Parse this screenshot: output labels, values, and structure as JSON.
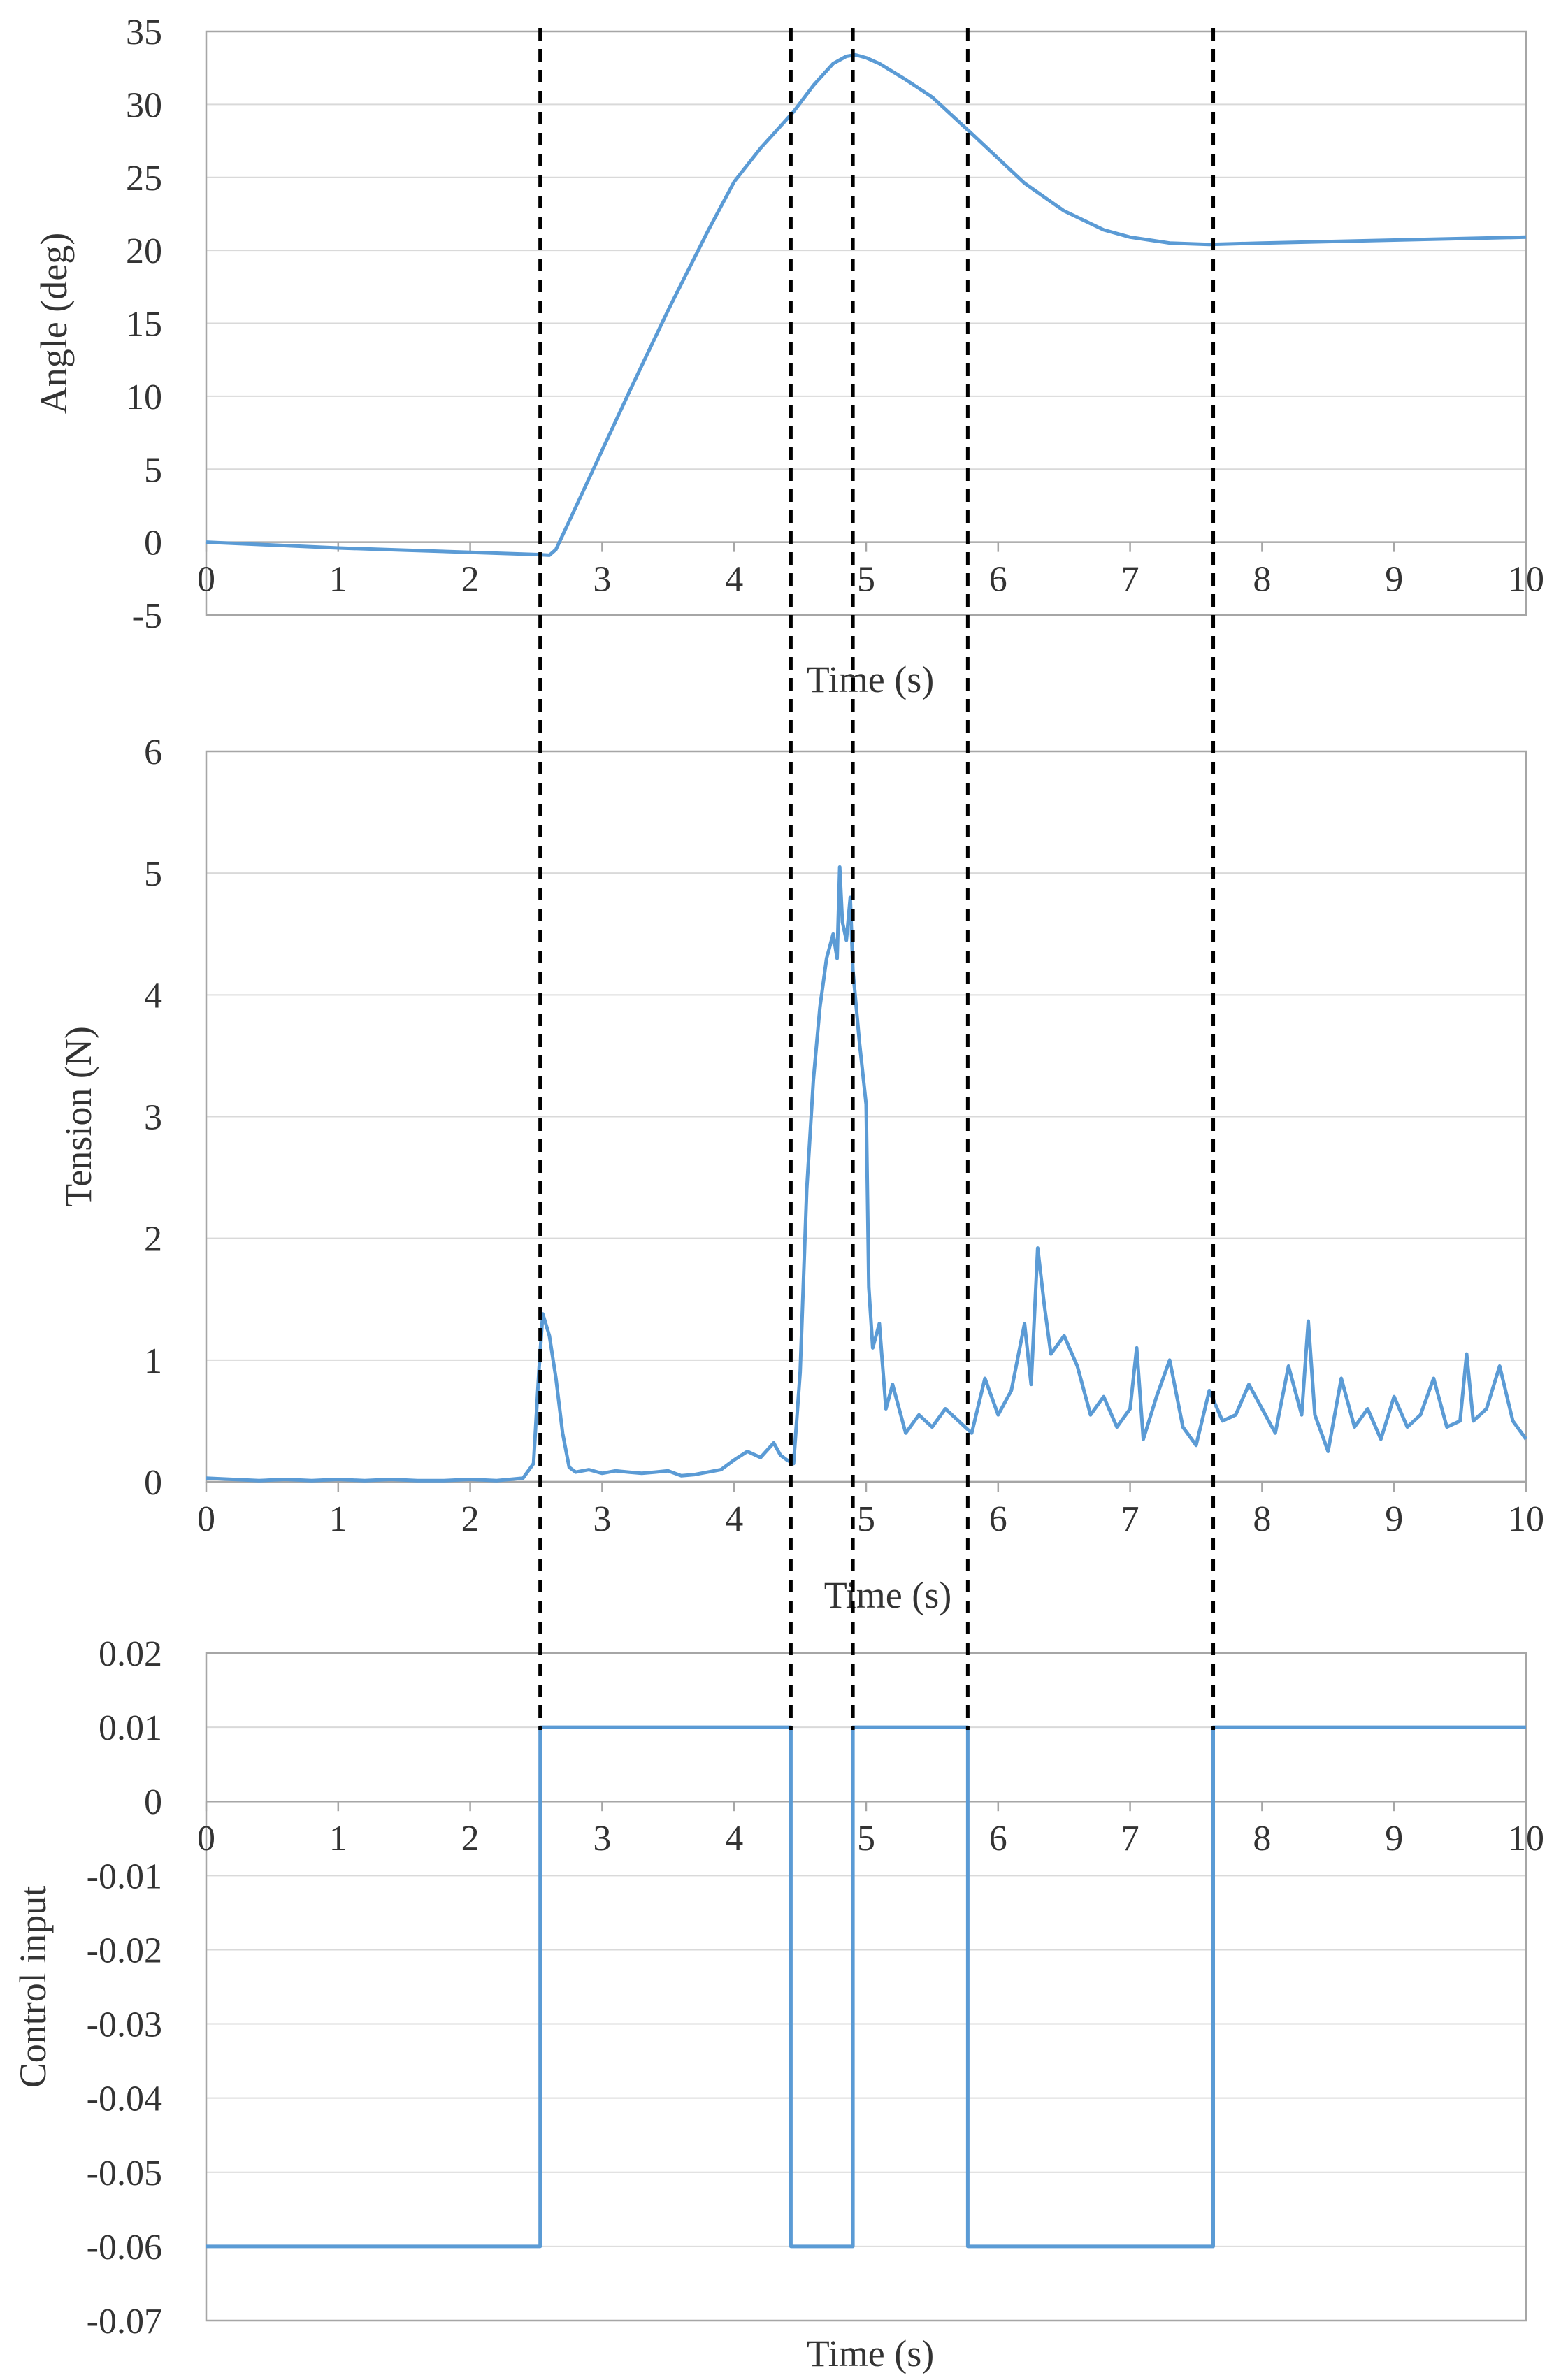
{
  "colors": {
    "series": "#5b9bd5",
    "grid": "#d9d9d9",
    "frame": "#a6a6a6",
    "markers": "#000000",
    "text": "#333333"
  },
  "chart_data": [
    {
      "type": "line",
      "xlabel": "Time (s)",
      "ylabel": "Angle (deg)",
      "xlim": [
        0,
        10
      ],
      "ylim": [
        -5,
        35
      ],
      "xticks": [
        "0",
        "1",
        "2",
        "3",
        "4",
        "5",
        "6",
        "7",
        "8",
        "9",
        "10"
      ],
      "yticks": [
        "-5",
        "0",
        "5",
        "10",
        "15",
        "20",
        "25",
        "30",
        "35"
      ],
      "grid": true,
      "x_axis_at_zero": true,
      "series": [
        {
          "x": [
            0,
            0.5,
            1,
            1.5,
            2,
            2.5,
            2.6,
            2.65,
            2.8,
            3.0,
            3.2,
            3.5,
            3.8,
            4.0,
            4.2,
            4.45,
            4.6,
            4.75,
            4.85,
            4.92,
            5.0,
            5.1,
            5.3,
            5.5,
            5.8,
            6.0,
            6.2,
            6.5,
            6.8,
            7.0,
            7.3,
            7.6,
            8.0,
            8.5,
            9.0,
            9.5,
            10.0
          ],
          "y": [
            0,
            -0.2,
            -0.4,
            -0.55,
            -0.7,
            -0.85,
            -0.9,
            -0.5,
            2.4,
            6.3,
            10.2,
            15.9,
            21.3,
            24.7,
            27.0,
            29.5,
            31.3,
            32.8,
            33.3,
            33.4,
            33.2,
            32.8,
            31.7,
            30.5,
            28.0,
            26.3,
            24.6,
            22.7,
            21.4,
            20.9,
            20.5,
            20.4,
            20.5,
            20.6,
            20.7,
            20.8,
            20.9
          ]
        }
      ]
    },
    {
      "type": "line",
      "xlabel": "Time (s)",
      "ylabel": "Tension (N)",
      "xlim": [
        0,
        10
      ],
      "ylim": [
        0,
        6
      ],
      "xticks": [
        "0",
        "1",
        "2",
        "3",
        "4",
        "5",
        "6",
        "7",
        "8",
        "9",
        "10"
      ],
      "yticks": [
        "0",
        "1",
        "2",
        "3",
        "4",
        "5",
        "6"
      ],
      "grid": true,
      "series": [
        {
          "x": [
            0,
            0.2,
            0.4,
            0.6,
            0.8,
            1.0,
            1.2,
            1.4,
            1.6,
            1.8,
            2.0,
            2.2,
            2.4,
            2.48,
            2.52,
            2.55,
            2.6,
            2.65,
            2.7,
            2.75,
            2.8,
            2.9,
            3.0,
            3.1,
            3.2,
            3.3,
            3.4,
            3.5,
            3.6,
            3.7,
            3.8,
            3.9,
            4.0,
            4.1,
            4.2,
            4.3,
            4.35,
            4.4,
            4.45,
            4.5,
            4.55,
            4.6,
            4.65,
            4.7,
            4.75,
            4.78,
            4.8,
            4.82,
            4.85,
            4.88,
            4.9,
            4.95,
            5.0,
            5.02,
            5.05,
            5.1,
            5.15,
            5.2,
            5.3,
            5.4,
            5.5,
            5.6,
            5.7,
            5.8,
            5.9,
            6.0,
            6.1,
            6.2,
            6.25,
            6.3,
            6.35,
            6.4,
            6.5,
            6.6,
            6.7,
            6.8,
            6.9,
            7.0,
            7.05,
            7.1,
            7.2,
            7.3,
            7.4,
            7.5,
            7.6,
            7.7,
            7.8,
            7.9,
            8.0,
            8.1,
            8.2,
            8.3,
            8.35,
            8.4,
            8.5,
            8.6,
            8.7,
            8.8,
            8.9,
            9.0,
            9.1,
            9.2,
            9.3,
            9.4,
            9.5,
            9.55,
            9.6,
            9.7,
            9.8,
            9.9,
            10.0
          ],
          "y": [
            0.03,
            0.02,
            0.01,
            0.02,
            0.01,
            0.02,
            0.01,
            0.02,
            0.01,
            0.01,
            0.02,
            0.01,
            0.03,
            0.15,
            0.9,
            1.38,
            1.2,
            0.85,
            0.4,
            0.12,
            0.08,
            0.1,
            0.07,
            0.09,
            0.08,
            0.07,
            0.08,
            0.09,
            0.05,
            0.06,
            0.08,
            0.1,
            0.18,
            0.25,
            0.2,
            0.32,
            0.22,
            0.18,
            0.15,
            0.9,
            2.4,
            3.3,
            3.9,
            4.3,
            4.5,
            4.3,
            5.05,
            4.6,
            4.45,
            4.8,
            4.2,
            3.6,
            3.1,
            1.6,
            1.1,
            1.3,
            0.6,
            0.8,
            0.4,
            0.55,
            0.45,
            0.6,
            0.5,
            0.4,
            0.85,
            0.55,
            0.75,
            1.3,
            0.8,
            1.92,
            1.45,
            1.05,
            1.2,
            0.95,
            0.55,
            0.7,
            0.45,
            0.6,
            1.1,
            0.35,
            0.7,
            1.0,
            0.45,
            0.3,
            0.75,
            0.5,
            0.55,
            0.8,
            0.6,
            0.4,
            0.95,
            0.55,
            1.32,
            0.55,
            0.25,
            0.85,
            0.45,
            0.6,
            0.35,
            0.7,
            0.45,
            0.55,
            0.85,
            0.45,
            0.5,
            1.05,
            0.5,
            0.6,
            0.95,
            0.5,
            0.35
          ]
        }
      ]
    },
    {
      "type": "line",
      "xlabel": "Time (s)",
      "ylabel": "Control input",
      "xlim": [
        0,
        10
      ],
      "ylim": [
        -0.07,
        0.02
      ],
      "xticks": [
        "0",
        "1",
        "2",
        "3",
        "4",
        "5",
        "6",
        "7",
        "8",
        "9",
        "10"
      ],
      "yticks": [
        "-0.07",
        "-0.06",
        "-0.05",
        "-0.04",
        "-0.03",
        "-0.02",
        "-0.01",
        "0",
        "0.01",
        "0.02"
      ],
      "grid": true,
      "x_axis_at_zero": true,
      "series": [
        {
          "x": [
            0,
            2.53,
            2.53,
            4.43,
            4.43,
            4.9,
            4.9,
            5.77,
            5.77,
            7.63,
            7.63,
            10.0
          ],
          "y": [
            -0.06,
            -0.06,
            0.01,
            0.01,
            -0.06,
            -0.06,
            0.01,
            0.01,
            -0.06,
            -0.06,
            0.01,
            0.01
          ]
        }
      ]
    }
  ],
  "phase_markers_time_s": [
    2.53,
    4.43,
    4.9,
    5.77,
    7.63
  ]
}
